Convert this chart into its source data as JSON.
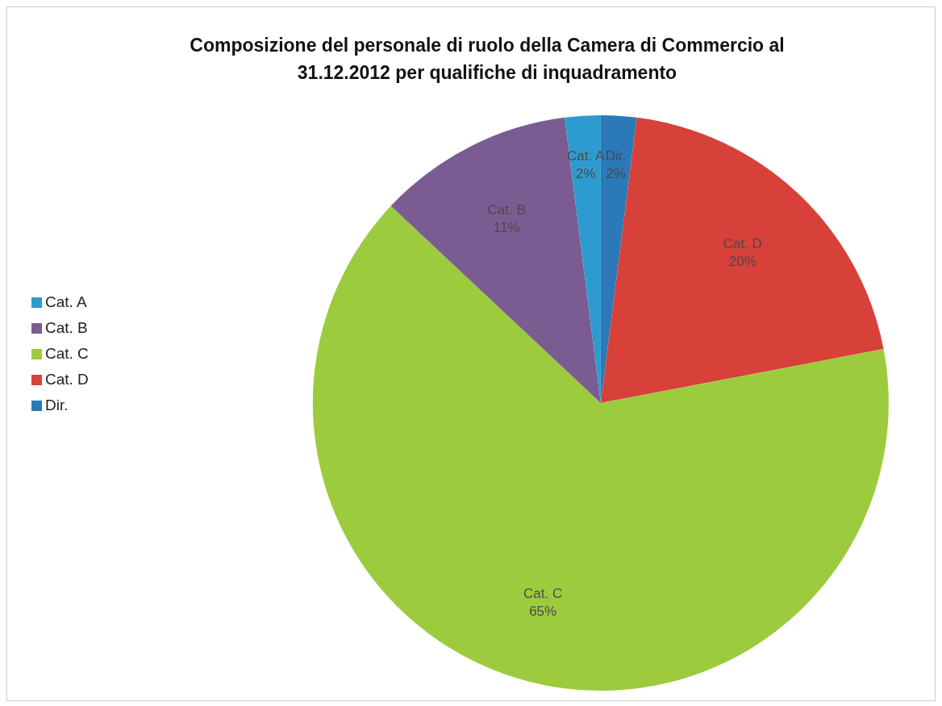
{
  "chart_data": {
    "type": "pie",
    "title": "Composizione del personale  di ruolo della Camera di Commercio al 31.12.2012 per qualifiche di inquadramento",
    "categories": [
      "Dir.",
      "Cat. D",
      "Cat. C",
      "Cat. B",
      "Cat. A"
    ],
    "values": [
      2,
      20,
      65,
      11,
      2
    ],
    "colors": [
      "#2b79b8",
      "#d8403a",
      "#9dcb3e",
      "#7a5c92",
      "#2e9bd0"
    ],
    "value_labels": [
      "2%",
      "20%",
      "65%",
      "11%",
      "2%"
    ],
    "legend": "left"
  }
}
